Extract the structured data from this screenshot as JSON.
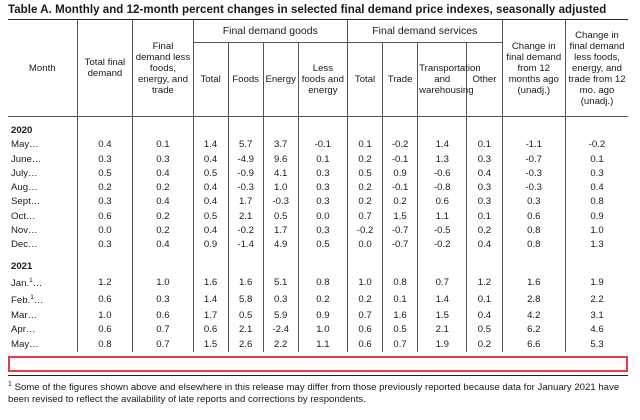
{
  "title": "Table A. Monthly and 12-month percent changes in selected final demand price indexes, seasonally adjusted",
  "headers": {
    "month": "Month",
    "total": "Total final demand",
    "core": "Final demand less foods, energy, and trade",
    "goods_group": "Final demand goods",
    "services_group": "Final demand services",
    "change": "Change in final demand from 12 months ago (unadj.)",
    "change_core": "Change in final demand less foods, energy, and trade from 12 mo. ago (unadj.)",
    "goods": [
      "Total",
      "Foods",
      "Energy",
      "Less foods and energy"
    ],
    "services": [
      "Total",
      "Trade",
      "Transportation and warehousing",
      "Other"
    ]
  },
  "groups": [
    {
      "year": "2020",
      "rows": [
        {
          "month": "May…",
          "values": [
            "0.4",
            "0.1",
            "1.4",
            "5.7",
            "3.7",
            "-0.1",
            "0.1",
            "-0.2",
            "1.4",
            "0.1",
            "-1.1",
            "-0.2"
          ]
        },
        {
          "month": "June…",
          "values": [
            "0.3",
            "0.3",
            "0.4",
            "-4.9",
            "9.6",
            "0.1",
            "0.2",
            "-0.1",
            "1.3",
            "0.3",
            "-0.7",
            "0.1"
          ]
        },
        {
          "month": "July…",
          "values": [
            "0.5",
            "0.4",
            "0.5",
            "-0.9",
            "4.1",
            "0.3",
            "0.5",
            "0.9",
            "-0.6",
            "0.4",
            "-0.3",
            "0.3"
          ]
        },
        {
          "month": "Aug…",
          "values": [
            "0.2",
            "0.2",
            "0.4",
            "-0.3",
            "1.0",
            "0.3",
            "0.2",
            "-0.1",
            "-0.8",
            "0.3",
            "-0.3",
            "0.4"
          ]
        },
        {
          "month": "Sept…",
          "values": [
            "0.3",
            "0.4",
            "0.4",
            "1.7",
            "-0.3",
            "0.3",
            "0.2",
            "0.2",
            "0.6",
            "0.3",
            "0.3",
            "0.8"
          ]
        },
        {
          "month": "Oct…",
          "values": [
            "0.6",
            "0.2",
            "0.5",
            "2.1",
            "0.5",
            "0.0",
            "0.7",
            "1.5",
            "1.1",
            "0.1",
            "0.6",
            "0.9"
          ]
        },
        {
          "month": "Nov…",
          "values": [
            "0.0",
            "0.2",
            "0.4",
            "-0.2",
            "1.7",
            "0.3",
            "-0.2",
            "-0.7",
            "-0.5",
            "0.2",
            "0.8",
            "1.0"
          ]
        },
        {
          "month": "Dec…",
          "values": [
            "0.3",
            "0.4",
            "0.9",
            "-1.4",
            "4.9",
            "0.5",
            "0.0",
            "-0.7",
            "-0.2",
            "0.4",
            "0.8",
            "1.3"
          ]
        }
      ]
    },
    {
      "year": "2021",
      "rows": [
        {
          "month": "Jan.",
          "mark": "1",
          "values": [
            "1.2",
            "1.0",
            "1.6",
            "1.6",
            "5.1",
            "0.8",
            "1.0",
            "0.8",
            "0.7",
            "1.2",
            "1.6",
            "1.9"
          ]
        },
        {
          "month": "Feb.",
          "mark": "1",
          "values": [
            "0.6",
            "0.3",
            "1.4",
            "5.8",
            "0.3",
            "0.2",
            "0.2",
            "0.1",
            "1.4",
            "0.1",
            "2.8",
            "2.2"
          ]
        },
        {
          "month": "Mar…",
          "values": [
            "1.0",
            "0.6",
            "1.7",
            "0.5",
            "5.9",
            "0.9",
            "0.7",
            "1.6",
            "1.5",
            "0.4",
            "4.2",
            "3.1"
          ]
        },
        {
          "month": "Apr…",
          "values": [
            "0.6",
            "0.7",
            "0.6",
            "2.1",
            "-2.4",
            "1.0",
            "0.6",
            "0.5",
            "2.1",
            "0.5",
            "6.2",
            "4.6"
          ]
        },
        {
          "month": "May…",
          "values": [
            "0.8",
            "0.7",
            "1.5",
            "2.6",
            "2.2",
            "1.1",
            "0.6",
            "0.7",
            "1.9",
            "0.2",
            "6.6",
            "5.3"
          ]
        }
      ]
    }
  ],
  "footnote": {
    "mark": "1",
    "text": " Some of the figures shown above and elsewhere in this release may differ from those previously reported because data for January 2021 have been revised to reflect the availability of late reports and corrections by respondents."
  }
}
